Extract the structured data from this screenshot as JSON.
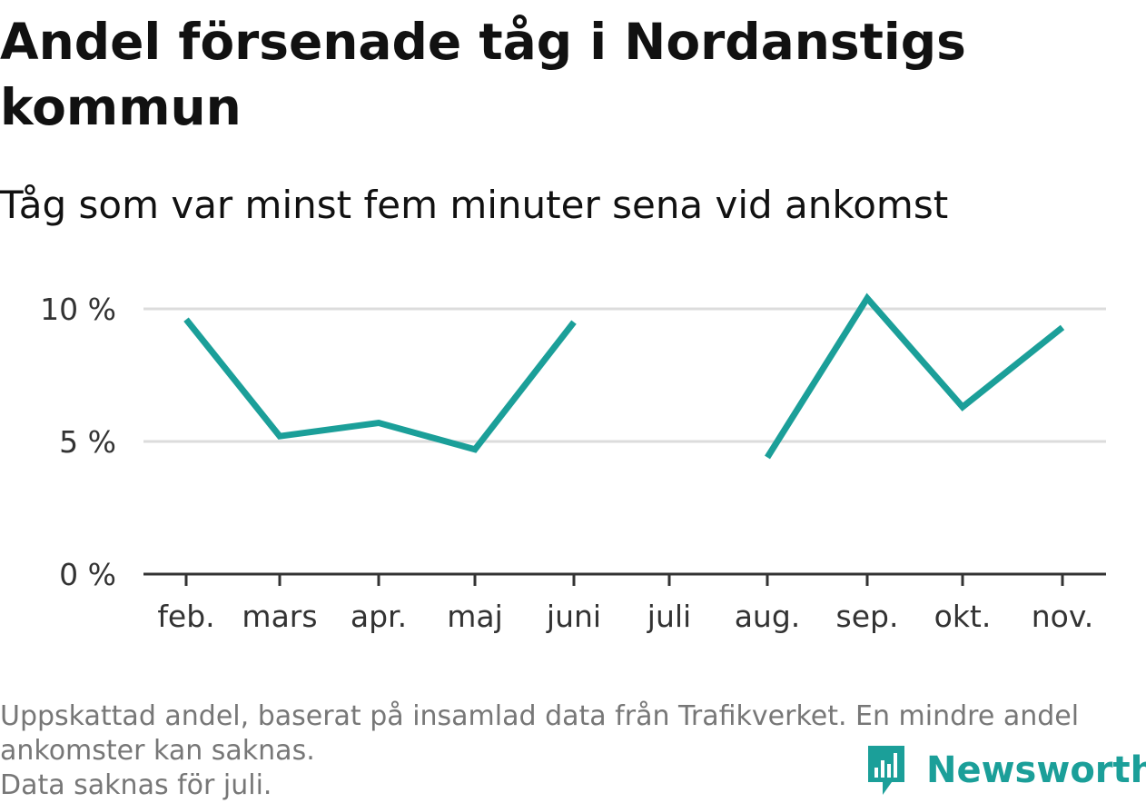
{
  "title": "Andel försenade tåg i Nordanstigs kommun",
  "subtitle": "Tåg som var minst fem minuter sena vid ankomst",
  "footer": {
    "note": "Uppskattad andel, baserat på insamlad data från Trafikverket. En mindre andel ankomster kan saknas.",
    "missing": "Data saknas för juli."
  },
  "brand": {
    "name": "Newsworthy",
    "icon": "newsworthy-logo-icon",
    "color": "#1b9f99"
  },
  "chart_data": {
    "type": "line",
    "categories": [
      "feb.",
      "mars",
      "apr.",
      "maj",
      "juni",
      "juli",
      "aug.",
      "sep.",
      "okt.",
      "nov."
    ],
    "series": [
      {
        "values": [
          9.6,
          5.2,
          5.7,
          4.7,
          9.5,
          null,
          4.4,
          10.4,
          6.3,
          9.3
        ],
        "color": "#1b9f99"
      }
    ],
    "yticks": [
      {
        "value": 0,
        "label": "0 %"
      },
      {
        "value": 5,
        "label": "5 %"
      },
      {
        "value": 10,
        "label": "10 %"
      }
    ],
    "ylim": [
      0,
      10
    ],
    "grid": true,
    "xlabel": "",
    "ylabel": ""
  }
}
